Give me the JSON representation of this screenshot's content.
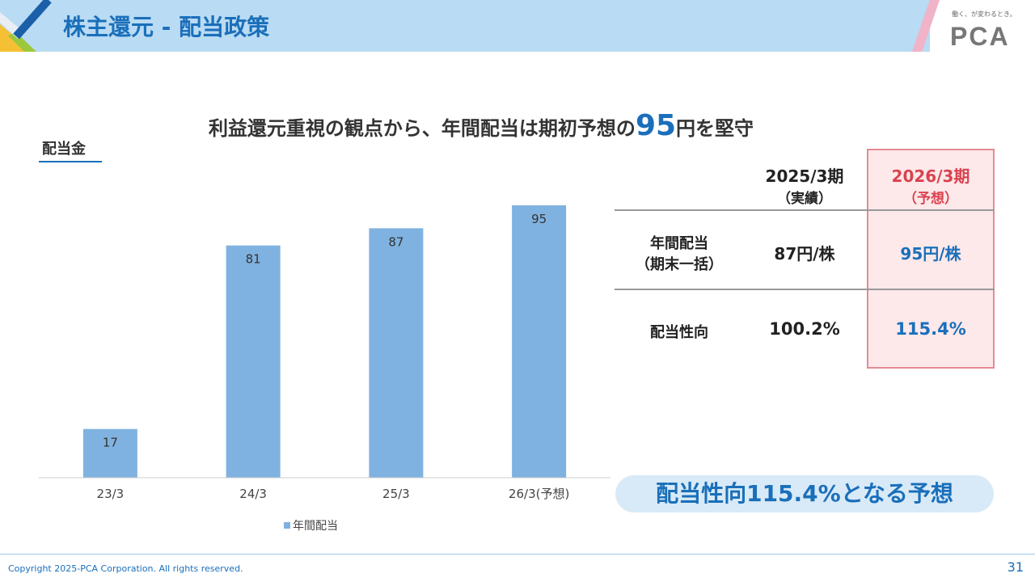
{
  "header": {
    "title": "株主還元 - 配当政策",
    "tagline": "働く、が変わるとき。",
    "logo": "PCA"
  },
  "headline": {
    "prefix": "利益還元重視の観点から、年間配当は期初予想の",
    "number": "95",
    "suffix": "円を堅守"
  },
  "chart_label": "配当金",
  "chart_data": {
    "type": "bar",
    "title": "",
    "xlabel": "",
    "ylabel": "配当金",
    "categories": [
      "23/3",
      "24/3",
      "25/3",
      "26/3(予想)"
    ],
    "series": [
      {
        "name": "年間配当",
        "values": [
          17,
          81,
          87,
          95
        ],
        "color": "#7fb2e0"
      }
    ],
    "ylim": [
      0,
      95
    ],
    "legend": "bottom",
    "grid": false
  },
  "table": {
    "col_headers": [
      {
        "line1": "2025/3期",
        "line2": "（実績）"
      },
      {
        "line1": "2026/3期",
        "line2": "（予想）"
      }
    ],
    "rows": [
      {
        "label1": "年間配当",
        "label2": "（期末一括）",
        "v2025": "87円/株",
        "v2026": "95円/株"
      },
      {
        "label1": "配当性向",
        "label2": "",
        "v2025": "100.2%",
        "v2026": "115.4%"
      }
    ]
  },
  "callout": "配当性向115.4%となる予想",
  "footer": {
    "copyright": "Copyright 2025-PCA Corporation. All rights reserved.",
    "page": "31"
  },
  "colors": {
    "accent": "#1a6fba",
    "highlight": "#d9434f",
    "bar": "#7fb2e0"
  }
}
